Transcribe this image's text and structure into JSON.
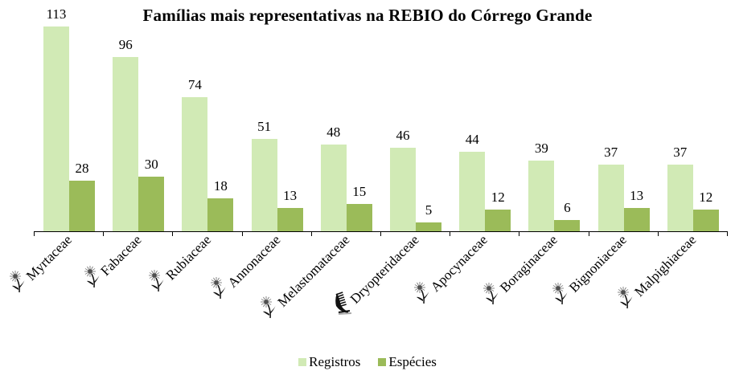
{
  "chart_data": {
    "type": "bar",
    "title": "Famílias mais representativas na REBIO do Córrego Grande",
    "xlabel": "",
    "ylabel": "",
    "ylim": [
      0,
      113
    ],
    "grid": false,
    "legend_position": "bottom",
    "categories": [
      "Myrtaceae",
      "Fabaceae",
      "Rubiaceae",
      "Annonaceae",
      "Melastomataceae",
      "Dryopteridaceae",
      "Apocynaceae",
      "Boraginaceae",
      "Bignoniaceae",
      "Malpighiaceae"
    ],
    "category_icons": [
      "flower-icon",
      "flower-icon",
      "flower-icon",
      "flower-icon",
      "flower-icon",
      "fern-icon",
      "flower-icon",
      "flower-icon",
      "flower-icon",
      "flower-icon"
    ],
    "series": [
      {
        "name": "Registros",
        "color": "#d1eab5",
        "values": [
          113,
          96,
          74,
          51,
          48,
          46,
          44,
          39,
          37,
          37
        ]
      },
      {
        "name": "Espécies",
        "color": "#9bbb59",
        "values": [
          28,
          30,
          18,
          13,
          15,
          5,
          12,
          6,
          13,
          12
        ]
      }
    ]
  },
  "legend": {
    "items": [
      {
        "label": "Registros",
        "color": "#d1eab5"
      },
      {
        "label": "Espécies",
        "color": "#9bbb59"
      }
    ]
  }
}
